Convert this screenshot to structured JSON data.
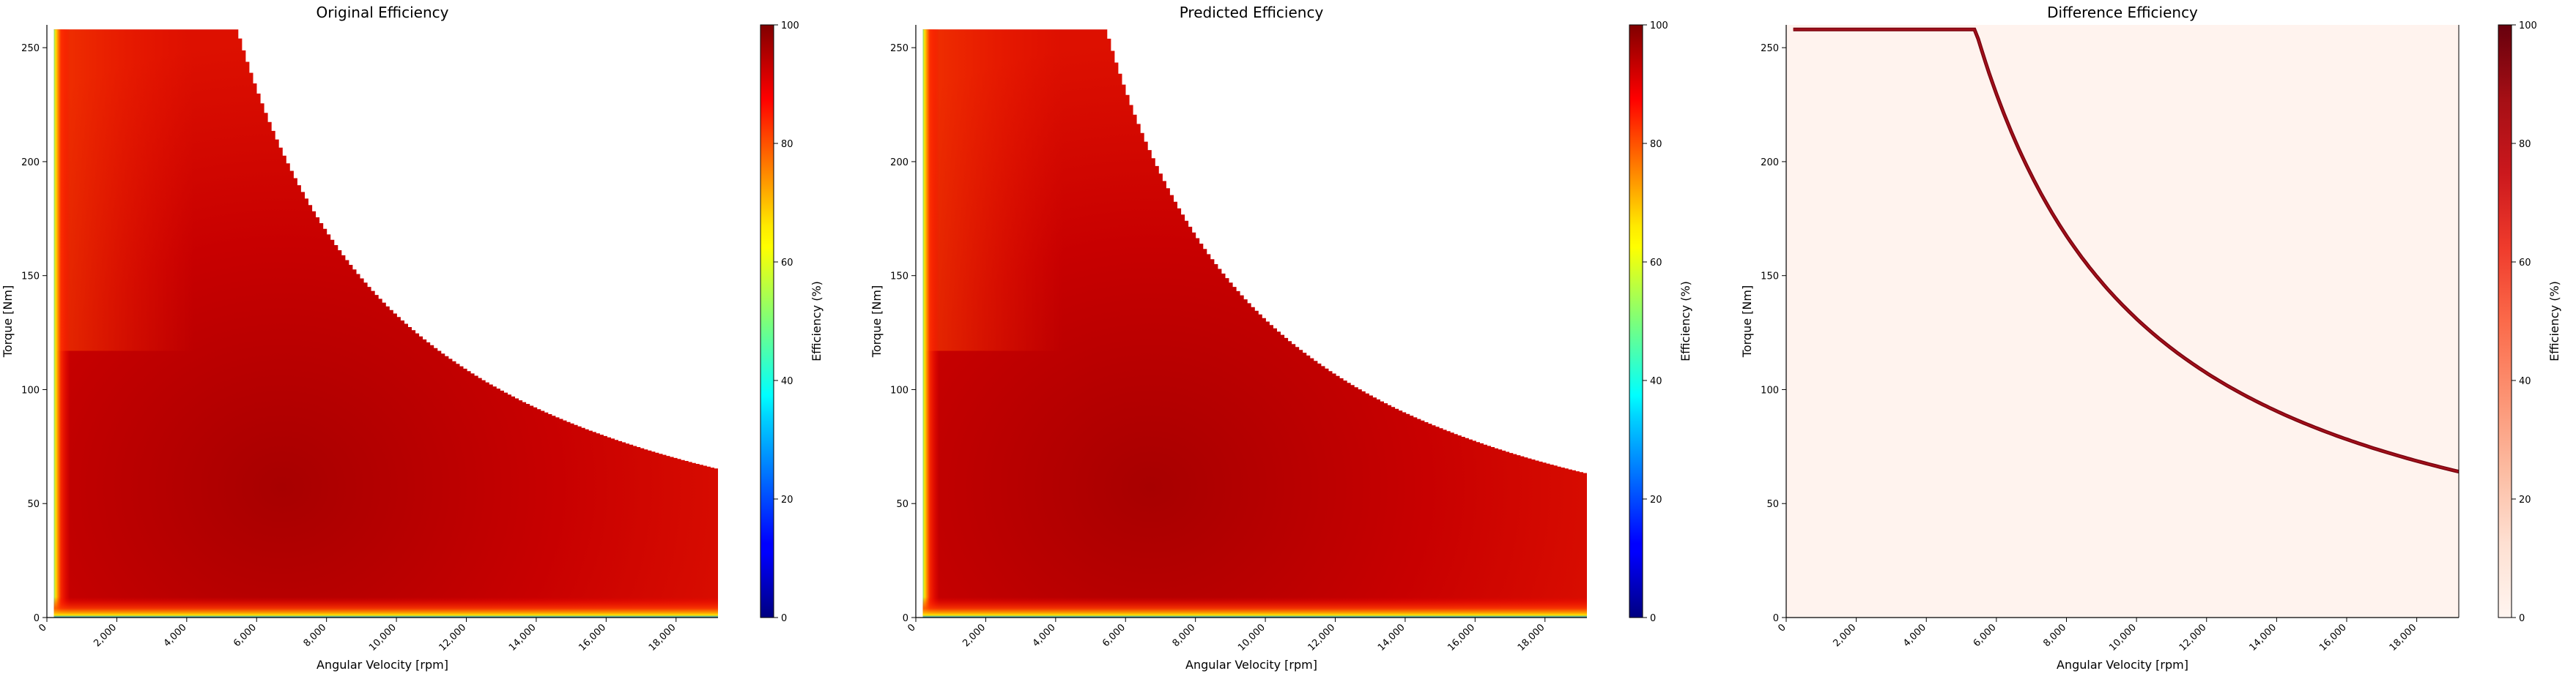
{
  "chart_data": [
    {
      "type": "heatmap",
      "title": "Original Efficiency",
      "xlabel": "Angular Velocity [rpm]",
      "ylabel": "Torque [Nm]",
      "xlim": [
        0,
        19200
      ],
      "ylim": [
        0,
        260
      ],
      "xticks": [
        "0",
        "2,000",
        "4,000",
        "6,000",
        "8,000",
        "10,000",
        "12,000",
        "14,000",
        "16,000",
        "18,000"
      ],
      "yticks": [
        "0",
        "50",
        "100",
        "150",
        "200",
        "250"
      ],
      "colormap": "jet",
      "colorbar": {
        "label": "Efficiency (%)",
        "min": 0,
        "max": 100,
        "ticks": [
          "0",
          "20",
          "40",
          "60",
          "80",
          "100"
        ]
      },
      "boundary": {
        "max_torque": 258,
        "knee_rpm": 5400,
        "end_rpm": 19200,
        "end_torque": 65
      },
      "peak_efficiency": 96
    },
    {
      "type": "heatmap",
      "title": "Predicted Efficiency",
      "xlabel": "Angular Velocity [rpm]",
      "ylabel": "Torque [Nm]",
      "xlim": [
        0,
        19200
      ],
      "ylim": [
        0,
        260
      ],
      "xticks": [
        "0",
        "2,000",
        "4,000",
        "6,000",
        "8,000",
        "10,000",
        "12,000",
        "14,000",
        "16,000",
        "18,000"
      ],
      "yticks": [
        "0",
        "50",
        "100",
        "150",
        "200",
        "250"
      ],
      "colormap": "jet",
      "colorbar": {
        "label": "Efficiency (%)",
        "min": 0,
        "max": 100,
        "ticks": [
          "0",
          "20",
          "40",
          "60",
          "80",
          "100"
        ]
      },
      "boundary": {
        "max_torque": 258,
        "knee_rpm": 5400,
        "end_rpm": 19200,
        "end_torque": 63
      },
      "peak_efficiency": 96
    },
    {
      "type": "heatmap",
      "title": "Difference Efficiency",
      "xlabel": "Angular Velocity [rpm]",
      "ylabel": "Torque [Nm]",
      "xlim": [
        0,
        19200
      ],
      "ylim": [
        0,
        260
      ],
      "xticks": [
        "0",
        "2,000",
        "4,000",
        "6,000",
        "8,000",
        "10,000",
        "12,000",
        "14,000",
        "16,000",
        "18,000"
      ],
      "yticks": [
        "0",
        "50",
        "100",
        "150",
        "200",
        "250"
      ],
      "colormap": "Reds",
      "colorbar": {
        "label": "Efficiency (%)",
        "min": 0,
        "max": 100,
        "ticks": [
          "0",
          "20",
          "40",
          "60",
          "80",
          "100"
        ]
      },
      "boundary": {
        "max_torque": 258,
        "knee_rpm": 5400,
        "end_rpm": 19200,
        "end_torque": 64
      },
      "background_value": 3,
      "band_value": 100
    }
  ]
}
